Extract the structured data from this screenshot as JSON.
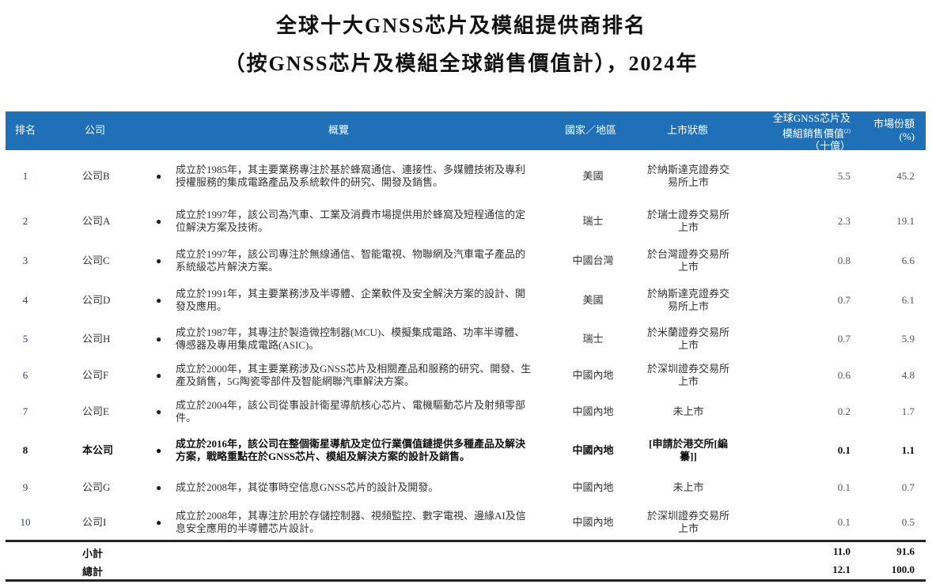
{
  "title": {
    "line1": "全球十大GNSS芯片及模組提供商排名",
    "line2": "（按GNSS芯片及模組全球銷售價值計），2024年"
  },
  "colors": {
    "header_bg": "#1f70b6",
    "header_text": "#ffffff"
  },
  "columns": {
    "rank": "排名",
    "company": "公司",
    "overview": "概覽",
    "country": "國家／地區",
    "status": "上市狀態",
    "value_line1": "全球GNSS芯片及",
    "value_line2": "模組銷售價值",
    "value_note": "(2)",
    "value_line3": "（十億）",
    "share_line1": "市場份額",
    "share_line2": "(%)"
  },
  "rows": [
    {
      "rank": "1",
      "company": "公司B",
      "overview": "成立於1985年，其主要業務專注於基於蜂窩通信、連接性、多媒體技術及專利授權服務的集成電路產品及系統軟件的研究、開發及銷售。",
      "country": "美國",
      "status": "於納斯達克證券交易所上市",
      "value": "5.5",
      "share": "45.2",
      "bold": false
    },
    {
      "rank": "2",
      "company": "公司A",
      "overview": "成立於1997年，該公司為汽車、工業及消費市場提供用於蜂窩及短程通信的定位解決方案及技術。",
      "country": "瑞士",
      "status": "於瑞士證券交易所上市",
      "value": "2.3",
      "share": "19.1",
      "bold": false
    },
    {
      "rank": "3",
      "company": "公司C",
      "overview": "成立於1997年，該公司專注於無線通信、智能電視、物聯網及汽車電子產品的系統級芯片解決方案。",
      "country": "中國台灣",
      "status": "於台灣證券交易所上市",
      "value": "0.8",
      "share": "6.6",
      "bold": false
    },
    {
      "rank": "4",
      "company": "公司D",
      "overview": "成立於1991年，其主要業務涉及半導體、企業軟件及安全解決方案的設計、開發及應用。",
      "country": "美國",
      "status": "於納斯達克證券交易所上市",
      "value": "0.7",
      "share": "6.1",
      "bold": false
    },
    {
      "rank": "5",
      "company": "公司H",
      "overview": "成立於1987年，其專注於製造微控制器(MCU)、模擬集成電路、功率半導體、傳感器及專用集成電路(ASIC)。",
      "country": "瑞士",
      "status": "於米蘭證券交易所上市",
      "value": "0.7",
      "share": "5.9",
      "bold": false
    },
    {
      "rank": "6",
      "company": "公司F",
      "overview": "成立於2000年，其主要業務涉及GNSS芯片及相關產品和服務的研究、開發、生產及銷售，5G陶瓷零部件及智能網聯汽車解決方案。",
      "country": "中國內地",
      "status": "於深圳證券交易所上市",
      "value": "0.6",
      "share": "4.8",
      "bold": false
    },
    {
      "rank": "7",
      "company": "公司E",
      "overview": "成立於2004年，該公司從事設計衛星導航核心芯片、電機驅動芯片及射頻零部件。",
      "country": "中國內地",
      "status": "未上市",
      "value": "0.2",
      "share": "1.7",
      "bold": false
    },
    {
      "rank": "8",
      "company": "本公司",
      "overview": "成立於2016年，該公司在整個衛星導航及定位行業價值鏈提供多種產品及解決方案，戰略重點在於GNSS芯片、模組及解決方案的設計及銷售。",
      "country": "中國內地",
      "status": "[申請於港交所[編纂]]",
      "value": "0.1",
      "share": "1.1",
      "bold": true
    },
    {
      "rank": "9",
      "company": "公司G",
      "overview": "成立於2008年，其從事時空信息GNSS芯片的設計及開發。",
      "country": "中國內地",
      "status": "未上市",
      "value": "0.1",
      "share": "0.7",
      "bold": false
    },
    {
      "rank": "10",
      "company": "公司I",
      "overview": "成立於2008年，其專注於用於存儲控制器、視頻監控、數字電視、邊緣AI及信息安全應用的半導體芯片設計。",
      "country": "中國內地",
      "status": "於深圳證券交易所上市",
      "value": "0.1",
      "share": "0.5",
      "bold": false
    }
  ],
  "subtotal": {
    "label": "小計",
    "value": "11.0",
    "share": "91.6"
  },
  "total": {
    "label": "總計",
    "value": "12.1",
    "share": "100.0"
  }
}
